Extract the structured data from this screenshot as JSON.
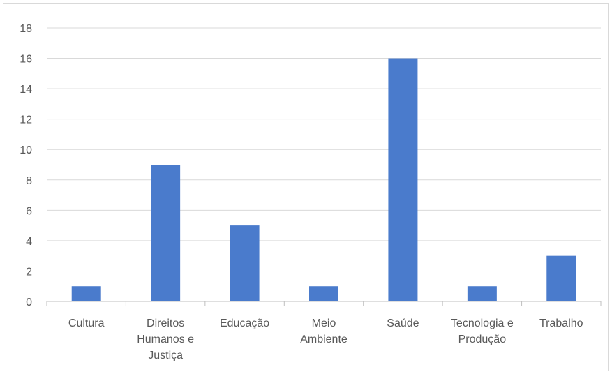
{
  "chart_data": {
    "type": "bar",
    "categories": [
      [
        "Cultura"
      ],
      [
        "Direitos",
        "Humanos e",
        "Justiça"
      ],
      [
        "Educação"
      ],
      [
        "Meio",
        "Ambiente"
      ],
      [
        "Saúde"
      ],
      [
        "Tecnologia e",
        "Produção"
      ],
      [
        "Trabalho"
      ]
    ],
    "values": [
      1,
      9,
      5,
      1,
      16,
      1,
      3
    ],
    "ylim": [
      0,
      18
    ],
    "yticks": [
      0,
      2,
      4,
      6,
      8,
      10,
      12,
      14,
      16,
      18
    ],
    "grid": true,
    "legend": "none",
    "colors": {
      "bar": "#4a7bcc",
      "grid": "#d9d9d9",
      "axis": "#bfbfbf",
      "text": "#595959"
    }
  }
}
